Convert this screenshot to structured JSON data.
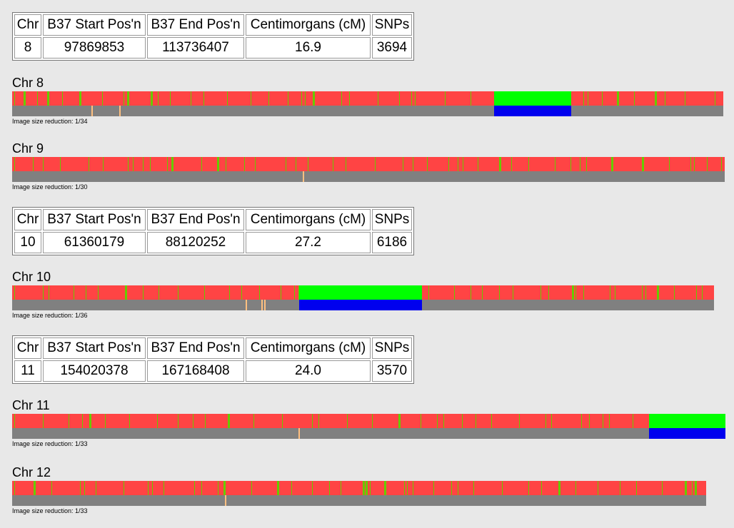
{
  "blocks": [
    {
      "table": {
        "headers": [
          "Chr",
          "B37 Start Pos'n",
          "B37 End Pos'n",
          "Centimorgans (cM)",
          "SNPs"
        ],
        "rows": [
          [
            "8",
            "97869853",
            "113736407",
            "16.9",
            "3694"
          ]
        ]
      }
    },
    {
      "chromosome": {
        "label": "Chr 8",
        "note": "Image size reduction: 1/34"
      }
    },
    {
      "chromosome": {
        "label": "Chr 9",
        "note": "Image size reduction: 1/30"
      }
    },
    {
      "table": {
        "headers": [
          "Chr",
          "B37 Start Pos'n",
          "B37 End Pos'n",
          "Centimorgans (cM)",
          "SNPs"
        ],
        "rows": [
          [
            "10",
            "61360179",
            "88120252",
            "27.2",
            "6186"
          ]
        ]
      }
    },
    {
      "chromosome": {
        "label": "Chr 10",
        "note": "Image size reduction: 1/36"
      }
    },
    {
      "table": {
        "headers": [
          "Chr",
          "B37 Start Pos'n",
          "B37 End Pos'n",
          "Centimorgans (cM)",
          "SNPs"
        ],
        "rows": [
          [
            "11",
            "154020378",
            "167168408",
            "24.0",
            "3570"
          ]
        ]
      }
    },
    {
      "chromosome": {
        "label": "Chr 11",
        "note": "Image size reduction: 1/33"
      }
    },
    {
      "chromosome": {
        "label": "Chr 12",
        "note": "Image size reduction: 1/33"
      }
    }
  ]
}
